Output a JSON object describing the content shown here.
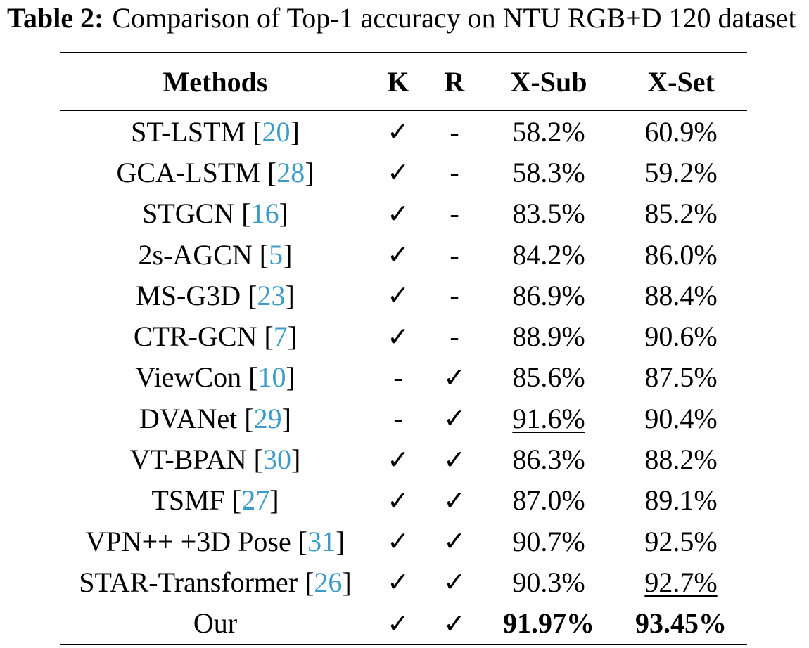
{
  "caption": {
    "label": "Table 2:",
    "text": "Comparison of Top-1 accuracy on NTU RGB+D 120 dataset"
  },
  "table": {
    "headers": [
      "Methods",
      "K",
      "R",
      "X-Sub",
      "X-Set"
    ],
    "rows": [
      {
        "method": "ST-LSTM",
        "ref": "20",
        "k": "✓",
        "r": "-",
        "xsub": "58.2%",
        "xset": "60.9%",
        "emph": ""
      },
      {
        "method": "GCA-LSTM",
        "ref": "28",
        "k": "✓",
        "r": "-",
        "xsub": "58.3%",
        "xset": "59.2%",
        "emph": ""
      },
      {
        "method": "STGCN",
        "ref": "16",
        "k": "✓",
        "r": "-",
        "xsub": "83.5%",
        "xset": "85.2%",
        "emph": ""
      },
      {
        "method": "2s-AGCN",
        "ref": "5",
        "k": "✓",
        "r": "-",
        "xsub": "84.2%",
        "xset": "86.0%",
        "emph": ""
      },
      {
        "method": "MS-G3D",
        "ref": "23",
        "k": "✓",
        "r": "-",
        "xsub": "86.9%",
        "xset": "88.4%",
        "emph": ""
      },
      {
        "method": "CTR-GCN",
        "ref": "7",
        "k": "✓",
        "r": "-",
        "xsub": "88.9%",
        "xset": "90.6%",
        "emph": ""
      },
      {
        "method": "ViewCon",
        "ref": "10",
        "k": "-",
        "r": "✓",
        "xsub": "85.6%",
        "xset": "87.5%",
        "emph": ""
      },
      {
        "method": "DVANet",
        "ref": "29",
        "k": "-",
        "r": "✓",
        "xsub": "91.6%",
        "xset": "90.4%",
        "emph": "xsub-underline"
      },
      {
        "method": "VT-BPAN",
        "ref": "30",
        "k": "✓",
        "r": "✓",
        "xsub": "86.3%",
        "xset": "88.2%",
        "emph": ""
      },
      {
        "method": "TSMF",
        "ref": "27",
        "k": "✓",
        "r": "✓",
        "xsub": "87.0%",
        "xset": "89.1%",
        "emph": ""
      },
      {
        "method": "VPN++ +3D Pose",
        "ref": "31",
        "k": "✓",
        "r": "✓",
        "xsub": "90.7%",
        "xset": "92.5%",
        "emph": ""
      },
      {
        "method": "STAR-Transformer",
        "ref": "26",
        "k": "✓",
        "r": "✓",
        "xsub": "90.3%",
        "xset": "92.7%",
        "emph": "xset-underline"
      },
      {
        "method": "Our",
        "ref": "",
        "k": "✓",
        "r": "✓",
        "xsub": "91.97%",
        "xset": "93.45%",
        "emph": "bold"
      }
    ]
  },
  "colors": {
    "citation": "#3c9cc8"
  }
}
